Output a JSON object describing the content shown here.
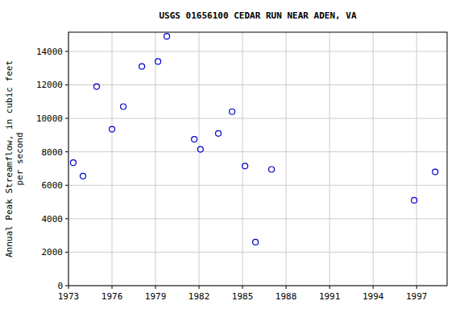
{
  "chart_data": {
    "type": "scatter",
    "title": "USGS 01656100 CEDAR RUN NEAR ADEN, VA",
    "ylabel": [
      "Annual Peak Streamflow, in cubic feet",
      "per second"
    ],
    "x": [
      1973.33,
      1974.0,
      1974.94,
      1976.0,
      1976.78,
      1978.06,
      1979.17,
      1979.78,
      1981.67,
      1982.1,
      1983.33,
      1984.28,
      1985.17,
      1985.89,
      1987.0,
      1996.83,
      1998.28
    ],
    "values": [
      7350,
      6550,
      11900,
      9350,
      10700,
      13100,
      13400,
      14900,
      8750,
      8150,
      9100,
      10400,
      7150,
      2600,
      6950,
      5100,
      6800
    ],
    "color": "#0000cc",
    "marker": "open-circle",
    "xlim": [
      1973,
      1999.1
    ],
    "xticks": [
      1973,
      1976,
      1979,
      1982,
      1985,
      1988,
      1991,
      1994,
      1997
    ],
    "ylim": [
      0,
      15150
    ],
    "yticks": [
      0,
      2000,
      4000,
      6000,
      8000,
      10000,
      12000,
      14000
    ],
    "grid": true
  }
}
